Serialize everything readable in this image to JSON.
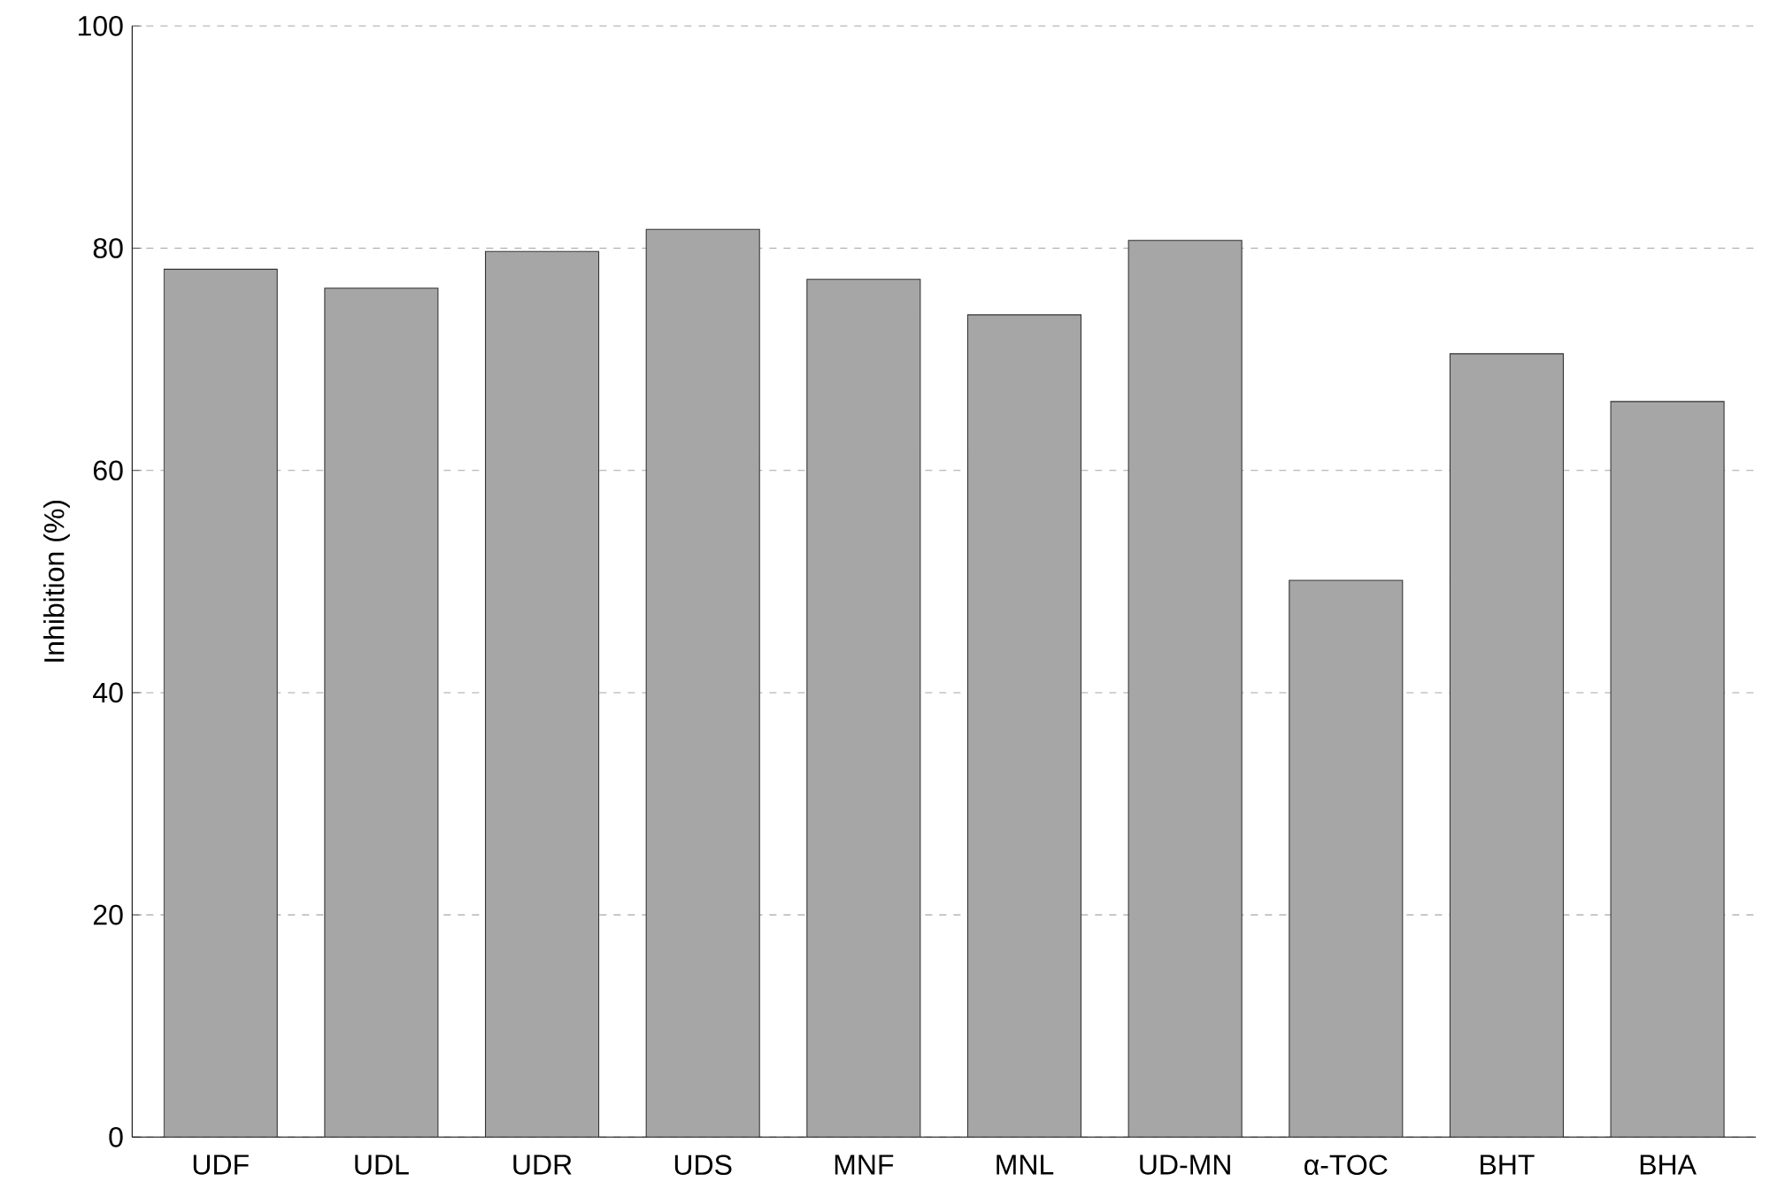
{
  "chart_data": {
    "type": "bar",
    "ylabel": "Inhibition (%)",
    "categories": [
      "UDF",
      "UDL",
      "UDR",
      "UDS",
      "MNF",
      "MNL",
      "UD-MN",
      "α-TOC",
      "BHT",
      "BHA"
    ],
    "values": [
      78.1,
      76.4,
      79.7,
      81.7,
      77.2,
      74.0,
      80.7,
      50.1,
      70.5,
      66.2
    ],
    "color": "#a6a6a6",
    "ylim": [
      0,
      100
    ],
    "yticks": [
      0,
      20,
      40,
      60,
      80,
      100
    ],
    "grid": "y"
  }
}
